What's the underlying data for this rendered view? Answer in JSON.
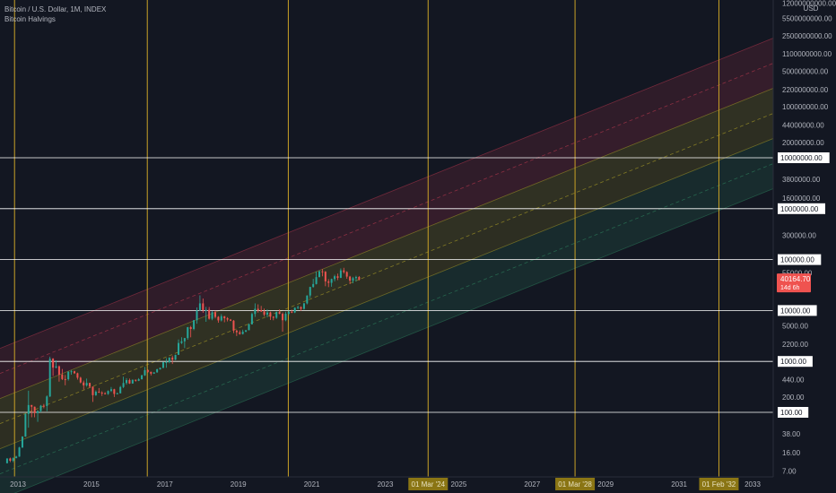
{
  "legend": {
    "symbol_line": "Bitcoin / U.S. Dollar, 1M, INDEX",
    "indicator": "Bitcoin Halvings"
  },
  "colors": {
    "background": "#131722",
    "up": "#26a69a",
    "down": "#ef5350",
    "halving_line": "#c9a227",
    "horizontal_line": "#ffffff",
    "price_label": "#ef5350",
    "halving_label_bg": "#8a7514",
    "band_red": "#b2374d",
    "band_yellow": "#a79a27",
    "band_green": "#2e7d5b"
  },
  "chart_data": {
    "type": "candlestick",
    "title": "Bitcoin / U.S. Dollar, 1M, INDEX",
    "y_scale": "log",
    "y_axis_unit": "USD",
    "y_tick_labels": [
      "12000000000.00",
      "5500000000.00",
      "2500000000.00",
      "1100000000.00",
      "500000000.00",
      "220000000.00",
      "100000000.00",
      "44000000.00",
      "20000000.00",
      "10000000.00",
      "3800000.00",
      "1600000.00",
      "1000000.00",
      "300000.00",
      "100000.00",
      "55000.00",
      "10000.00",
      "5000.00",
      "2200.00",
      "1000.00",
      "440.00",
      "200.00",
      "100.00",
      "38.00",
      "16.00",
      "7.00"
    ],
    "x_tick_labels": [
      "2013",
      "2015",
      "2017",
      "2019",
      "2021",
      "2023",
      "01 Mar '24",
      "2025",
      "2027",
      "01 Mar '28",
      "2029",
      "2031",
      "01 Feb '32",
      "2033"
    ],
    "horizontal_lines": [
      10000000,
      1000000,
      100000,
      10000,
      1000,
      100
    ],
    "halving_dates": [
      "2012-11-28",
      "2016-07-09",
      "2020-05-11",
      "2024-03-01",
      "2028-03-01",
      "2032-02-01"
    ],
    "last_price": "40164.70",
    "countdown": "14d 6h",
    "bands": {
      "upper_outer_start": {
        "date": "2012-09-01",
        "value": 2000
      },
      "upper_outer_end": {
        "date": "2034-01-01",
        "value": 3000000000
      },
      "band_count": 6
    },
    "series": [
      {
        "type": "ohlc",
        "points": [
          [
            "2012-09",
            10,
            12.5,
            10,
            12.4
          ],
          [
            "2012-10",
            12.4,
            12.9,
            10.5,
            11.2
          ],
          [
            "2012-11",
            11.2,
            13,
            10.5,
            12.6
          ],
          [
            "2012-12",
            12.6,
            14,
            12.5,
            13.5
          ],
          [
            "2013-01",
            13.5,
            21,
            13.4,
            20.4
          ],
          [
            "2013-02",
            20.4,
            34,
            20,
            33.4
          ],
          [
            "2013-03",
            33.4,
            95,
            33,
            93
          ],
          [
            "2013-04",
            93,
            266,
            50,
            139
          ],
          [
            "2013-05",
            139,
            140,
            80,
            129
          ],
          [
            "2013-06",
            129,
            130,
            80,
            97
          ],
          [
            "2013-07",
            97,
            110,
            65,
            106
          ],
          [
            "2013-08",
            106,
            140,
            100,
            135
          ],
          [
            "2013-09",
            135,
            146,
            120,
            133
          ],
          [
            "2013-10",
            133,
            215,
            105,
            205
          ],
          [
            "2013-11",
            205,
            1240,
            200,
            1130
          ],
          [
            "2013-12",
            1130,
            1160,
            520,
            755
          ],
          [
            "2014-01",
            755,
            1050,
            730,
            800
          ],
          [
            "2014-02",
            800,
            830,
            400,
            550
          ],
          [
            "2014-03",
            550,
            710,
            430,
            450
          ],
          [
            "2014-04",
            450,
            540,
            340,
            448
          ],
          [
            "2014-05",
            448,
            640,
            420,
            627
          ],
          [
            "2014-06",
            627,
            680,
            550,
            640
          ],
          [
            "2014-07",
            640,
            660,
            570,
            586
          ],
          [
            "2014-08",
            586,
            600,
            440,
            478
          ],
          [
            "2014-09",
            478,
            500,
            370,
            386
          ],
          [
            "2014-10",
            386,
            420,
            280,
            338
          ],
          [
            "2014-11",
            338,
            460,
            320,
            378
          ],
          [
            "2014-12",
            378,
            380,
            300,
            320
          ],
          [
            "2015-01",
            320,
            320,
            160,
            217
          ],
          [
            "2015-02",
            217,
            270,
            210,
            254
          ],
          [
            "2015-03",
            254,
            300,
            240,
            244
          ],
          [
            "2015-04",
            244,
            260,
            210,
            236
          ],
          [
            "2015-05",
            236,
            250,
            225,
            230
          ],
          [
            "2015-06",
            230,
            270,
            220,
            263
          ],
          [
            "2015-07",
            263,
            315,
            250,
            284
          ],
          [
            "2015-08",
            284,
            290,
            200,
            230
          ],
          [
            "2015-09",
            230,
            245,
            225,
            236
          ],
          [
            "2015-10",
            236,
            330,
            236,
            314
          ],
          [
            "2015-11",
            314,
            500,
            300,
            377
          ],
          [
            "2015-12",
            377,
            470,
            350,
            430
          ],
          [
            "2016-01",
            430,
            460,
            360,
            368
          ],
          [
            "2016-02",
            368,
            440,
            365,
            437
          ],
          [
            "2016-03",
            437,
            440,
            400,
            416
          ],
          [
            "2016-04",
            416,
            470,
            410,
            448
          ],
          [
            "2016-05",
            448,
            550,
            440,
            531
          ],
          [
            "2016-06",
            531,
            780,
            520,
            673
          ],
          [
            "2016-07",
            673,
            700,
            600,
            624
          ],
          [
            "2016-08",
            624,
            630,
            530,
            575
          ],
          [
            "2016-09",
            575,
            615,
            570,
            609
          ],
          [
            "2016-10",
            609,
            720,
            600,
            700
          ],
          [
            "2016-11",
            700,
            760,
            690,
            745
          ],
          [
            "2016-12",
            745,
            980,
            740,
            964
          ],
          [
            "2017-01",
            964,
            1160,
            750,
            970
          ],
          [
            "2017-02",
            970,
            1200,
            920,
            1190
          ],
          [
            "2017-03",
            1190,
            1300,
            890,
            1080
          ],
          [
            "2017-04",
            1080,
            1350,
            1060,
            1348
          ],
          [
            "2017-05",
            1348,
            2700,
            1340,
            2300
          ],
          [
            "2017-06",
            2300,
            2980,
            2200,
            2480
          ],
          [
            "2017-07",
            2480,
            2900,
            1830,
            2875
          ],
          [
            "2017-08",
            2875,
            4750,
            2670,
            4700
          ],
          [
            "2017-09",
            4700,
            4980,
            2970,
            4340
          ],
          [
            "2017-10",
            4340,
            6470,
            4100,
            6450
          ],
          [
            "2017-11",
            6450,
            11500,
            5500,
            10000
          ],
          [
            "2017-12",
            10000,
            19800,
            10000,
            13800
          ],
          [
            "2018-01",
            13800,
            17200,
            9000,
            10200
          ],
          [
            "2018-02",
            10200,
            11800,
            6000,
            10300
          ],
          [
            "2018-03",
            10300,
            11700,
            6600,
            6900
          ],
          [
            "2018-04",
            6900,
            9800,
            6450,
            9240
          ],
          [
            "2018-05",
            9240,
            10000,
            7000,
            7490
          ],
          [
            "2018-06",
            7490,
            7760,
            5750,
            6390
          ],
          [
            "2018-07",
            6390,
            8500,
            6100,
            7730
          ],
          [
            "2018-08",
            7730,
            7750,
            5880,
            7030
          ],
          [
            "2018-09",
            7030,
            7400,
            6100,
            6620
          ],
          [
            "2018-10",
            6620,
            6800,
            6200,
            6300
          ],
          [
            "2018-11",
            6300,
            6500,
            3600,
            4020
          ],
          [
            "2018-12",
            4020,
            4200,
            3150,
            3740
          ],
          [
            "2019-01",
            3740,
            4080,
            3350,
            3450
          ],
          [
            "2019-02",
            3450,
            4200,
            3380,
            3830
          ],
          [
            "2019-03",
            3830,
            4120,
            3740,
            4100
          ],
          [
            "2019-04",
            4100,
            5600,
            4080,
            5350
          ],
          [
            "2019-05",
            5350,
            9100,
            5330,
            8550
          ],
          [
            "2019-06",
            8550,
            13800,
            7500,
            10800
          ],
          [
            "2019-07",
            10800,
            13200,
            9070,
            10100
          ],
          [
            "2019-08",
            10100,
            12300,
            9330,
            9600
          ],
          [
            "2019-09",
            9600,
            10900,
            7700,
            8300
          ],
          [
            "2019-10",
            8300,
            10500,
            7300,
            9150
          ],
          [
            "2019-11",
            9150,
            9500,
            6500,
            7550
          ],
          [
            "2019-12",
            7550,
            7750,
            6430,
            7200
          ],
          [
            "2020-01",
            7200,
            9580,
            6850,
            9350
          ],
          [
            "2020-02",
            9350,
            10500,
            8450,
            8600
          ],
          [
            "2020-03",
            8600,
            9200,
            3850,
            6440
          ],
          [
            "2020-04",
            6440,
            9450,
            6150,
            8630
          ],
          [
            "2020-05",
            8630,
            10070,
            8100,
            9450
          ],
          [
            "2020-06",
            9450,
            10400,
            8900,
            9140
          ],
          [
            "2020-07",
            9140,
            11450,
            8900,
            11350
          ],
          [
            "2020-08",
            11350,
            12480,
            10600,
            11650
          ],
          [
            "2020-09",
            11650,
            12100,
            9880,
            10780
          ],
          [
            "2020-10",
            10780,
            14100,
            10400,
            13800
          ],
          [
            "2020-11",
            13800,
            19900,
            13200,
            19700
          ],
          [
            "2020-12",
            19700,
            29300,
            17600,
            29000
          ],
          [
            "2021-01",
            29000,
            41900,
            28100,
            33100
          ],
          [
            "2021-02",
            33100,
            58300,
            32400,
            45200
          ],
          [
            "2021-03",
            45200,
            61700,
            45000,
            58800
          ],
          [
            "2021-04",
            58800,
            64800,
            47000,
            57700
          ],
          [
            "2021-05",
            57700,
            59500,
            30000,
            37300
          ],
          [
            "2021-06",
            37300,
            41300,
            28800,
            35000
          ],
          [
            "2021-07",
            35000,
            42300,
            29300,
            41500
          ],
          [
            "2021-08",
            41500,
            50500,
            37300,
            47100
          ],
          [
            "2021-09",
            47100,
            52900,
            39600,
            43800
          ],
          [
            "2021-10",
            43800,
            67000,
            43300,
            61300
          ],
          [
            "2021-11",
            61300,
            69000,
            53300,
            57000
          ],
          [
            "2021-12",
            57000,
            59000,
            42000,
            46300
          ],
          [
            "2022-01",
            46300,
            47900,
            32900,
            38500
          ],
          [
            "2022-02",
            38500,
            45800,
            34300,
            43200
          ],
          [
            "2022-03",
            43200,
            48200,
            37200,
            45500
          ],
          [
            "2022-04",
            45500,
            47400,
            39000,
            40164.7
          ]
        ]
      }
    ]
  }
}
